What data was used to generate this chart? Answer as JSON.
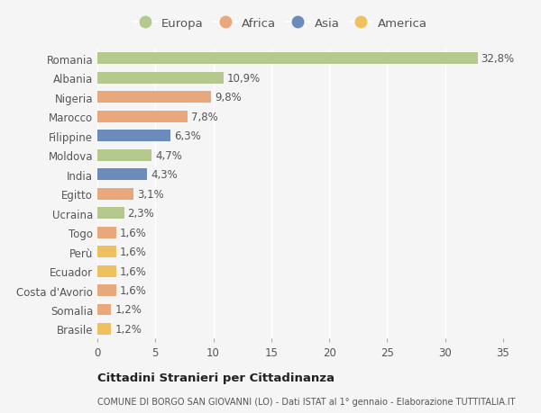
{
  "countries": [
    "Romania",
    "Albania",
    "Nigeria",
    "Marocco",
    "Filippine",
    "Moldova",
    "India",
    "Egitto",
    "Ucraina",
    "Togo",
    "Perù",
    "Ecuador",
    "Costa d'Avorio",
    "Somalia",
    "Brasile"
  ],
  "values": [
    32.8,
    10.9,
    9.8,
    7.8,
    6.3,
    4.7,
    4.3,
    3.1,
    2.3,
    1.6,
    1.6,
    1.6,
    1.6,
    1.2,
    1.2
  ],
  "labels": [
    "32,8%",
    "10,9%",
    "9,8%",
    "7,8%",
    "6,3%",
    "4,7%",
    "4,3%",
    "3,1%",
    "2,3%",
    "1,6%",
    "1,6%",
    "1,6%",
    "1,6%",
    "1,2%",
    "1,2%"
  ],
  "continents": [
    "Europa",
    "Europa",
    "Africa",
    "Africa",
    "Asia",
    "Europa",
    "Asia",
    "Africa",
    "Europa",
    "Africa",
    "America",
    "America",
    "Africa",
    "Africa",
    "America"
  ],
  "colors": {
    "Europa": "#b5c98e",
    "Africa": "#e8a87c",
    "Asia": "#6b8cba",
    "America": "#f0c060"
  },
  "xlim": [
    0,
    35
  ],
  "xticks": [
    0,
    5,
    10,
    15,
    20,
    25,
    30,
    35
  ],
  "background_color": "#f5f5f5",
  "title": "Cittadini Stranieri per Cittadinanza",
  "subtitle": "COMUNE DI BORGO SAN GIOVANNI (LO) - Dati ISTAT al 1° gennaio - Elaborazione TUTTITALIA.IT",
  "bar_height": 0.6,
  "label_fontsize": 8.5,
  "tick_fontsize": 8.5,
  "legend_fontsize": 9.5,
  "grid_color": "#ffffff",
  "text_color": "#555555"
}
